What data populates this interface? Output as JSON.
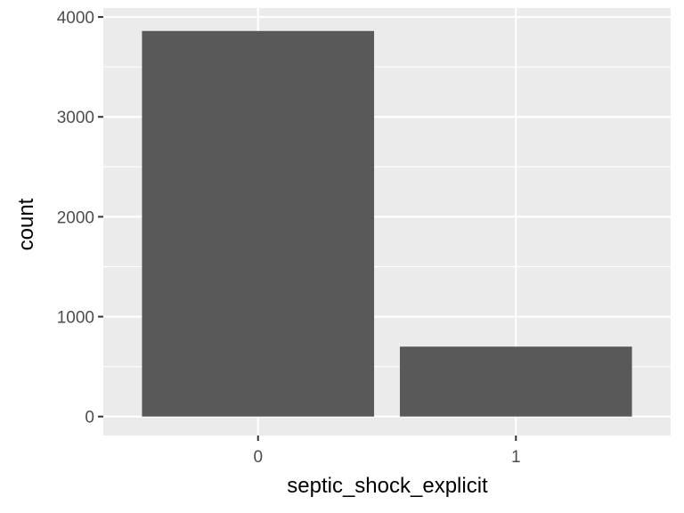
{
  "chart_data": {
    "type": "bar",
    "categories": [
      "0",
      "1"
    ],
    "values": [
      3860,
      700
    ],
    "xlabel": "septic_shock_explicit",
    "ylabel": "count",
    "ylim": [
      -190,
      4090
    ],
    "yticks": [
      0,
      1000,
      2000,
      3000,
      4000
    ],
    "grid": true,
    "colors": {
      "bar": "#595959",
      "panel": "#ebebeb",
      "grid": "#ffffff",
      "tick": "#333333"
    }
  }
}
